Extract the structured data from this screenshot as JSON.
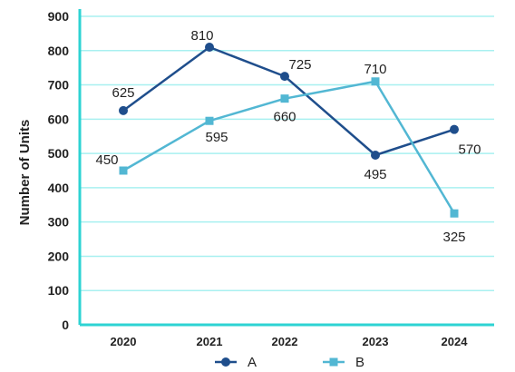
{
  "chart_data": {
    "type": "line",
    "x": [
      "2020",
      "2021",
      "2022",
      "2023",
      "2024"
    ],
    "ylabel": "Number of Units",
    "xlabel": "",
    "ylim": [
      0,
      900
    ],
    "yticks": [
      0,
      100,
      200,
      300,
      400,
      500,
      600,
      700,
      800,
      900
    ],
    "grid": "horizontal",
    "legend_position": "bottom-center",
    "axis_color": "#2ED3D3",
    "grid_color": "#A8F0F0",
    "series": [
      {
        "name": "A",
        "values": [
          625,
          810,
          725,
          495,
          570
        ],
        "color": "#1F4E8C",
        "marker": "circle"
      },
      {
        "name": "B",
        "values": [
          450,
          595,
          660,
          710,
          325
        ],
        "color": "#52B7D3",
        "marker": "square"
      }
    ]
  }
}
